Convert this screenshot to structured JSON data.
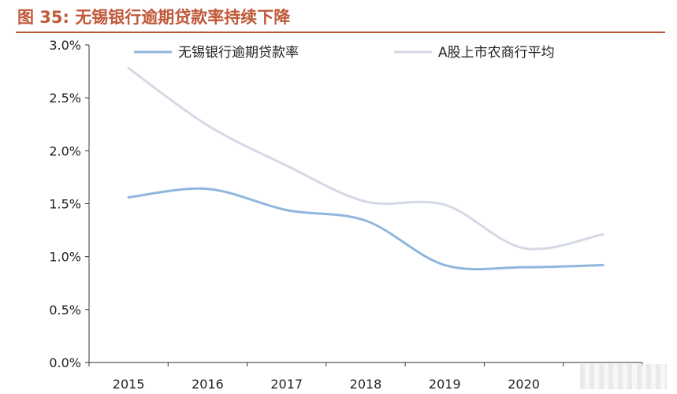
{
  "header": {
    "title": "图 35: 无锡银行逾期贷款率持续下降"
  },
  "chart_data": {
    "type": "line",
    "title": "图 35: 无锡银行逾期贷款率持续下降",
    "categories": [
      "2015",
      "2016",
      "2017",
      "2018",
      "2019",
      "2020",
      ""
    ],
    "x": [
      2015,
      2016,
      2017,
      2018,
      2019,
      2020,
      2021
    ],
    "series": [
      {
        "name": "无锡银行逾期贷款率",
        "color": "#8fb7de",
        "values": [
          1.56,
          1.64,
          1.44,
          1.34,
          0.92,
          0.9,
          0.92
        ]
      },
      {
        "name": "A股上市农商行平均",
        "color": "#d4d9e6",
        "values": [
          2.78,
          2.24,
          1.86,
          1.52,
          1.49,
          1.08,
          1.21
        ]
      }
    ],
    "ylim": [
      0,
      3.0
    ],
    "yticks": [
      "0.0%",
      "0.5%",
      "1.0%",
      "1.5%",
      "2.0%",
      "2.5%",
      "3.0%"
    ],
    "ytick_values": [
      0,
      0.5,
      1.0,
      1.5,
      2.0,
      2.5,
      3.0
    ],
    "xlabel": "",
    "ylabel": "",
    "grid": false,
    "legend_position": "top"
  }
}
